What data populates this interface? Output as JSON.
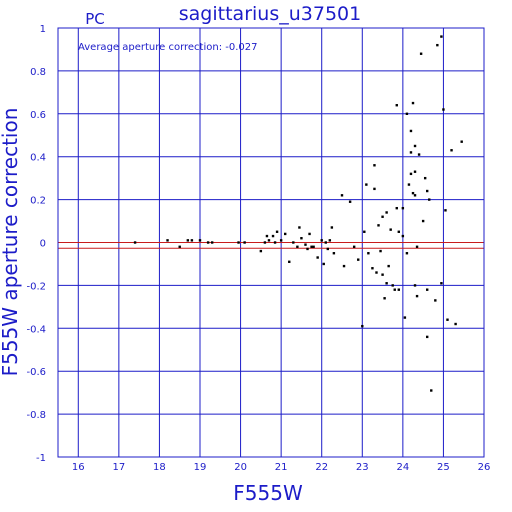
{
  "chart_data": {
    "type": "scatter",
    "title": "sagittarius_u37501",
    "corner_label": "PC",
    "annotation": "Average aperture correction: -0.027",
    "xlabel": "F555W",
    "ylabel": "F555W aperture correction",
    "xlim": [
      15.5,
      26
    ],
    "ylim": [
      -1,
      1
    ],
    "xticks": [
      16,
      17,
      18,
      19,
      20,
      21,
      22,
      23,
      24,
      25,
      26
    ],
    "yticks": [
      -1,
      -0.8,
      -0.6,
      -0.4,
      -0.2,
      0,
      0.2,
      0.4,
      0.6,
      0.8,
      1
    ],
    "grid": true,
    "reference_lines": [
      {
        "y": 0,
        "color": "#c81c1c"
      },
      {
        "y": -0.027,
        "color": "#c81c1c"
      }
    ],
    "colors": {
      "axes": "#1c1cc8",
      "points": "#000000",
      "reference": "#c81c1c"
    },
    "points": [
      {
        "x": 17.4,
        "y": 0.0
      },
      {
        "x": 18.2,
        "y": 0.01
      },
      {
        "x": 18.5,
        "y": -0.02
      },
      {
        "x": 18.7,
        "y": 0.01
      },
      {
        "x": 18.8,
        "y": 0.01
      },
      {
        "x": 19.0,
        "y": 0.01
      },
      {
        "x": 19.2,
        "y": 0.0
      },
      {
        "x": 19.3,
        "y": 0.0
      },
      {
        "x": 19.95,
        "y": 0.0
      },
      {
        "x": 20.1,
        "y": 0.0
      },
      {
        "x": 20.5,
        "y": -0.04
      },
      {
        "x": 20.6,
        "y": 0.0
      },
      {
        "x": 20.65,
        "y": 0.03
      },
      {
        "x": 20.7,
        "y": 0.01
      },
      {
        "x": 20.8,
        "y": 0.03
      },
      {
        "x": 20.85,
        "y": 0.0
      },
      {
        "x": 20.9,
        "y": 0.05
      },
      {
        "x": 21.0,
        "y": 0.01
      },
      {
        "x": 21.1,
        "y": 0.04
      },
      {
        "x": 21.2,
        "y": -0.09
      },
      {
        "x": 21.3,
        "y": 0.0
      },
      {
        "x": 21.4,
        "y": -0.02
      },
      {
        "x": 21.45,
        "y": 0.07
      },
      {
        "x": 21.5,
        "y": 0.02
      },
      {
        "x": 21.6,
        "y": -0.01
      },
      {
        "x": 21.65,
        "y": -0.03
      },
      {
        "x": 21.7,
        "y": 0.04
      },
      {
        "x": 21.75,
        "y": -0.02
      },
      {
        "x": 21.8,
        "y": -0.02
      },
      {
        "x": 21.9,
        "y": -0.07
      },
      {
        "x": 22.0,
        "y": 0.01
      },
      {
        "x": 22.05,
        "y": -0.1
      },
      {
        "x": 22.1,
        "y": 0.0
      },
      {
        "x": 22.15,
        "y": -0.03
      },
      {
        "x": 22.2,
        "y": 0.01
      },
      {
        "x": 22.25,
        "y": 0.07
      },
      {
        "x": 22.3,
        "y": -0.05
      },
      {
        "x": 22.5,
        "y": 0.22
      },
      {
        "x": 22.55,
        "y": -0.11
      },
      {
        "x": 22.7,
        "y": 0.19
      },
      {
        "x": 22.8,
        "y": -0.02
      },
      {
        "x": 22.9,
        "y": -0.08
      },
      {
        "x": 23.0,
        "y": -0.39
      },
      {
        "x": 23.05,
        "y": 0.05
      },
      {
        "x": 23.1,
        "y": 0.27
      },
      {
        "x": 23.15,
        "y": -0.05
      },
      {
        "x": 23.25,
        "y": -0.12
      },
      {
        "x": 23.3,
        "y": 0.36
      },
      {
        "x": 23.3,
        "y": 0.25
      },
      {
        "x": 23.35,
        "y": -0.14
      },
      {
        "x": 23.4,
        "y": 0.08
      },
      {
        "x": 23.45,
        "y": -0.04
      },
      {
        "x": 23.5,
        "y": 0.12
      },
      {
        "x": 23.5,
        "y": -0.15
      },
      {
        "x": 23.55,
        "y": -0.26
      },
      {
        "x": 23.6,
        "y": 0.14
      },
      {
        "x": 23.6,
        "y": -0.19
      },
      {
        "x": 23.65,
        "y": -0.11
      },
      {
        "x": 23.7,
        "y": 0.06
      },
      {
        "x": 23.75,
        "y": -0.2
      },
      {
        "x": 23.8,
        "y": -0.22
      },
      {
        "x": 23.85,
        "y": 0.64
      },
      {
        "x": 23.85,
        "y": 0.16
      },
      {
        "x": 23.9,
        "y": -0.22
      },
      {
        "x": 23.9,
        "y": 0.05
      },
      {
        "x": 24.0,
        "y": 0.16
      },
      {
        "x": 24.0,
        "y": 0.03
      },
      {
        "x": 24.05,
        "y": -0.35
      },
      {
        "x": 24.1,
        "y": 0.6
      },
      {
        "x": 24.1,
        "y": -0.05
      },
      {
        "x": 24.15,
        "y": 0.27
      },
      {
        "x": 24.2,
        "y": 0.52
      },
      {
        "x": 24.2,
        "y": 0.42
      },
      {
        "x": 24.2,
        "y": 0.32
      },
      {
        "x": 24.25,
        "y": 0.65
      },
      {
        "x": 24.25,
        "y": 0.23
      },
      {
        "x": 24.3,
        "y": -0.2
      },
      {
        "x": 24.3,
        "y": 0.45
      },
      {
        "x": 24.3,
        "y": 0.33
      },
      {
        "x": 24.3,
        "y": 0.22
      },
      {
        "x": 24.35,
        "y": -0.02
      },
      {
        "x": 24.35,
        "y": -0.25
      },
      {
        "x": 24.4,
        "y": 0.41
      },
      {
        "x": 24.45,
        "y": 0.88
      },
      {
        "x": 24.5,
        "y": 0.1
      },
      {
        "x": 24.55,
        "y": 0.3
      },
      {
        "x": 24.6,
        "y": -0.44
      },
      {
        "x": 24.6,
        "y": 0.24
      },
      {
        "x": 24.6,
        "y": -0.22
      },
      {
        "x": 24.65,
        "y": 0.2
      },
      {
        "x": 24.7,
        "y": -0.69
      },
      {
        "x": 24.8,
        "y": -0.27
      },
      {
        "x": 24.85,
        "y": 0.92
      },
      {
        "x": 24.95,
        "y": 0.96
      },
      {
        "x": 24.95,
        "y": -0.19
      },
      {
        "x": 25.0,
        "y": 0.62
      },
      {
        "x": 25.05,
        "y": 0.15
      },
      {
        "x": 25.1,
        "y": -0.36
      },
      {
        "x": 25.2,
        "y": 0.43
      },
      {
        "x": 25.3,
        "y": -0.38
      },
      {
        "x": 25.45,
        "y": 0.47
      }
    ]
  }
}
